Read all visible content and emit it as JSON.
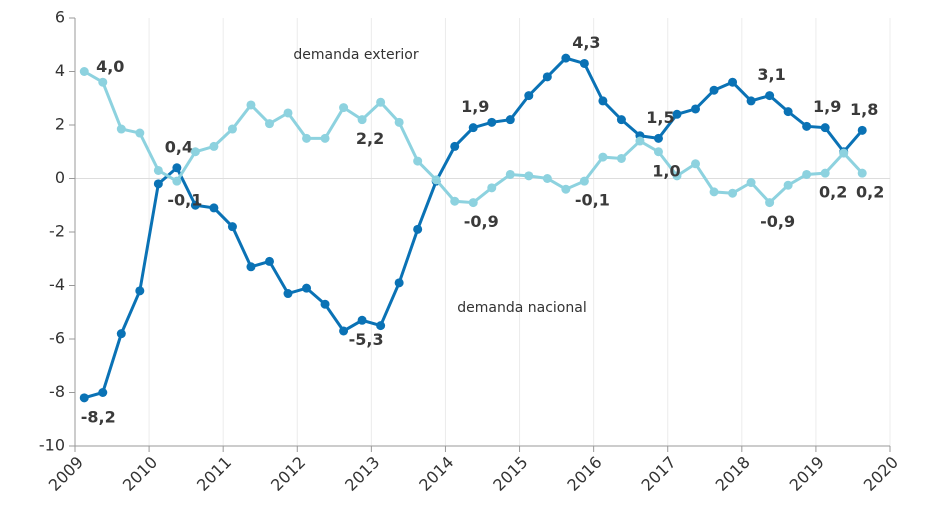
{
  "chart_data": {
    "type": "line",
    "x": [
      2009.125,
      2009.375,
      2009.625,
      2009.875,
      2010.125,
      2010.375,
      2010.625,
      2010.875,
      2011.125,
      2011.375,
      2011.625,
      2011.875,
      2012.125,
      2012.375,
      2012.625,
      2012.875,
      2013.125,
      2013.375,
      2013.625,
      2013.875,
      2014.125,
      2014.375,
      2014.625,
      2014.875,
      2015.125,
      2015.375,
      2015.625,
      2015.875,
      2016.125,
      2016.375,
      2016.625,
      2016.875,
      2017.125,
      2017.375,
      2017.625,
      2017.875,
      2018.125,
      2018.375,
      2018.625,
      2018.875,
      2019.125,
      2019.375,
      2019.625
    ],
    "series": [
      {
        "name": "demanda nacional",
        "color": "#0a72b5",
        "values": [
          -8.2,
          -8.0,
          -5.8,
          -4.2,
          -0.2,
          0.4,
          -1.0,
          -1.1,
          -1.8,
          -3.3,
          -3.1,
          -4.3,
          -4.1,
          -4.7,
          -5.7,
          -5.3,
          -5.5,
          -3.9,
          -1.9,
          -0.1,
          1.2,
          1.9,
          2.1,
          2.2,
          3.1,
          3.8,
          4.5,
          4.3,
          2.9,
          2.2,
          1.6,
          1.5,
          2.4,
          2.6,
          3.3,
          3.6,
          2.9,
          3.1,
          2.5,
          1.95,
          1.9,
          1.0,
          1.8
        ],
        "value_labels": [
          "-8,2",
          null,
          null,
          null,
          null,
          "0,4",
          null,
          null,
          null,
          null,
          null,
          null,
          null,
          null,
          null,
          "-5,3",
          null,
          null,
          null,
          null,
          null,
          "1,9",
          null,
          null,
          null,
          null,
          null,
          "4,3",
          null,
          null,
          null,
          "1,5",
          null,
          null,
          null,
          null,
          null,
          "3,1",
          null,
          null,
          "1,9",
          null,
          "1,8"
        ]
      },
      {
        "name": "demanda exterior",
        "color": "#8dd2df",
        "values": [
          4.0,
          3.6,
          1.85,
          1.7,
          0.3,
          -0.1,
          1.0,
          1.2,
          1.85,
          2.75,
          2.05,
          2.45,
          1.5,
          1.5,
          2.65,
          2.2,
          2.85,
          2.1,
          0.65,
          -0.05,
          -0.85,
          -0.9,
          -0.35,
          0.15,
          0.1,
          0.0,
          -0.4,
          -0.1,
          0.8,
          0.75,
          1.4,
          1.0,
          0.1,
          0.55,
          -0.5,
          -0.55,
          -0.15,
          -0.9,
          -0.25,
          0.15,
          0.2,
          0.95,
          0.2
        ],
        "value_labels": [
          "4,0",
          null,
          null,
          null,
          null,
          "-0,1",
          null,
          null,
          null,
          null,
          null,
          null,
          null,
          null,
          null,
          "2,2",
          null,
          null,
          null,
          null,
          null,
          "-0,9",
          null,
          null,
          null,
          null,
          null,
          "-0,1",
          null,
          null,
          null,
          "1,0",
          null,
          null,
          null,
          null,
          null,
          "-0,9",
          null,
          null,
          "0,2",
          null,
          "0,2"
        ]
      }
    ],
    "xlim": [
      2009,
      2020
    ],
    "xticks": [
      2009,
      2010,
      2011,
      2012,
      2013,
      2014,
      2015,
      2016,
      2017,
      2018,
      2019,
      2020
    ],
    "ylim": [
      -10,
      6
    ],
    "yticks": [
      -10,
      -8,
      -6,
      -4,
      -2,
      0,
      2,
      4,
      6
    ],
    "grid": true
  }
}
